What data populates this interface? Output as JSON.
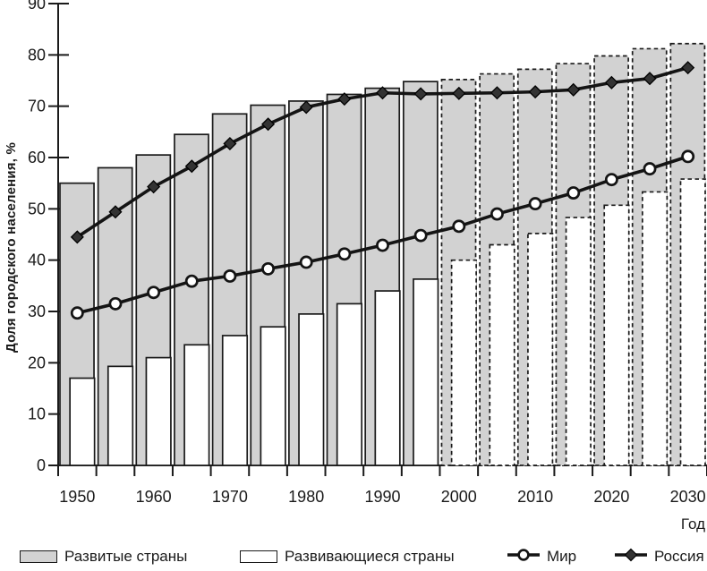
{
  "chart_data": {
    "type": "bar+line combo (histogram with overlaid lines, values from 2000 shown dashed as forecast)",
    "title": "",
    "ylabel": "Доля городского населения, %",
    "xlabel": "Год",
    "ylim": [
      0,
      90
    ],
    "y_ticks": [
      0,
      10,
      20,
      30,
      40,
      50,
      60,
      70,
      80,
      90
    ],
    "categories": [
      1950,
      1955,
      1960,
      1965,
      1970,
      1975,
      1980,
      1985,
      1990,
      1995,
      2000,
      2005,
      2010,
      2015,
      2020,
      2025,
      2030
    ],
    "x_tick_labels": [
      "1950",
      "1960",
      "1970",
      "1980",
      "1990",
      "2000",
      "2010",
      "2020",
      "2030"
    ],
    "forecast_from": 2000,
    "grid": false,
    "legend_position": "bottom",
    "series": [
      {
        "name": "Развитые страны",
        "type": "bar",
        "fill": "#d2d2d2",
        "values": [
          55,
          58,
          60.5,
          64.5,
          68.5,
          70.2,
          71,
          72.3,
          73.5,
          74.8,
          75.2,
          76.3,
          77.2,
          78.3,
          79.8,
          81.2,
          82.2
        ]
      },
      {
        "name": "Развивающиеся страны",
        "type": "bar",
        "fill": "#ffffff",
        "values": [
          17,
          19.3,
          21,
          23.5,
          25.3,
          27,
          29.5,
          31.5,
          34,
          36.3,
          40,
          43,
          45.2,
          48.3,
          50.7,
          53.3,
          55.8
        ]
      },
      {
        "name": "Мир",
        "type": "line",
        "marker": "circle-open",
        "color": "#141414",
        "values": [
          29.7,
          31.5,
          33.7,
          35.9,
          36.9,
          38.3,
          39.6,
          41.2,
          42.9,
          44.8,
          46.6,
          49,
          51,
          53.1,
          55.7,
          57.8,
          60.2
        ]
      },
      {
        "name": "Россия",
        "type": "line",
        "marker": "diamond-filled",
        "color": "#141414",
        "values": [
          44.5,
          49.4,
          54.3,
          58.3,
          62.7,
          66.5,
          69.8,
          71.4,
          72.6,
          72.4,
          72.5,
          72.6,
          72.8,
          73.2,
          74.6,
          75.4,
          77.5
        ]
      }
    ],
    "colors": {
      "bar_gray": "#d2d2d2",
      "bar_white": "#ffffff",
      "stroke": "#1a1a1a",
      "line": "#141414"
    }
  }
}
